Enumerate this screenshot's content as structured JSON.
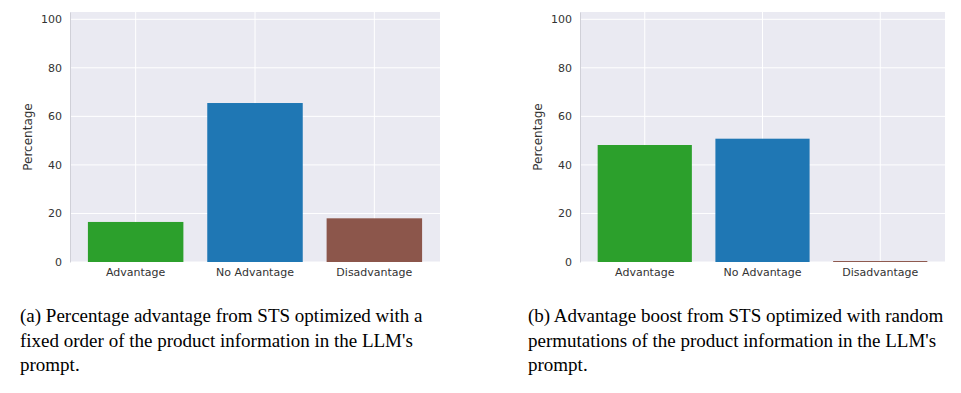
{
  "chart_data": [
    {
      "type": "bar",
      "y_label": "Percentage",
      "caption": "(a) Percentage advantage from STS optimized with a fixed order of the product information in the LLM's prompt.",
      "categories": [
        "Advantage",
        "No Advantage",
        "Disadvantage"
      ],
      "values": [
        16.5,
        65.5,
        18
      ],
      "colors": [
        "#2ca02c",
        "#1f77b4",
        "#8c564b"
      ],
      "ylim": [
        0,
        103
      ],
      "yticks": [
        0,
        20,
        40,
        60,
        80,
        100
      ],
      "grid": true
    },
    {
      "type": "bar",
      "y_label": "Percentage",
      "caption": "(b) Advantage boost from STS optimized with random permutations of the product information in the LLM's prompt.",
      "categories": [
        "Advantage",
        "No Advantage",
        "Disadvantage"
      ],
      "values": [
        48.2,
        50.8,
        0.4
      ],
      "colors": [
        "#2ca02c",
        "#1f77b4",
        "#8c564b"
      ],
      "ylim": [
        0,
        103
      ],
      "yticks": [
        0,
        20,
        40,
        60,
        80,
        100
      ],
      "grid": true
    }
  ]
}
